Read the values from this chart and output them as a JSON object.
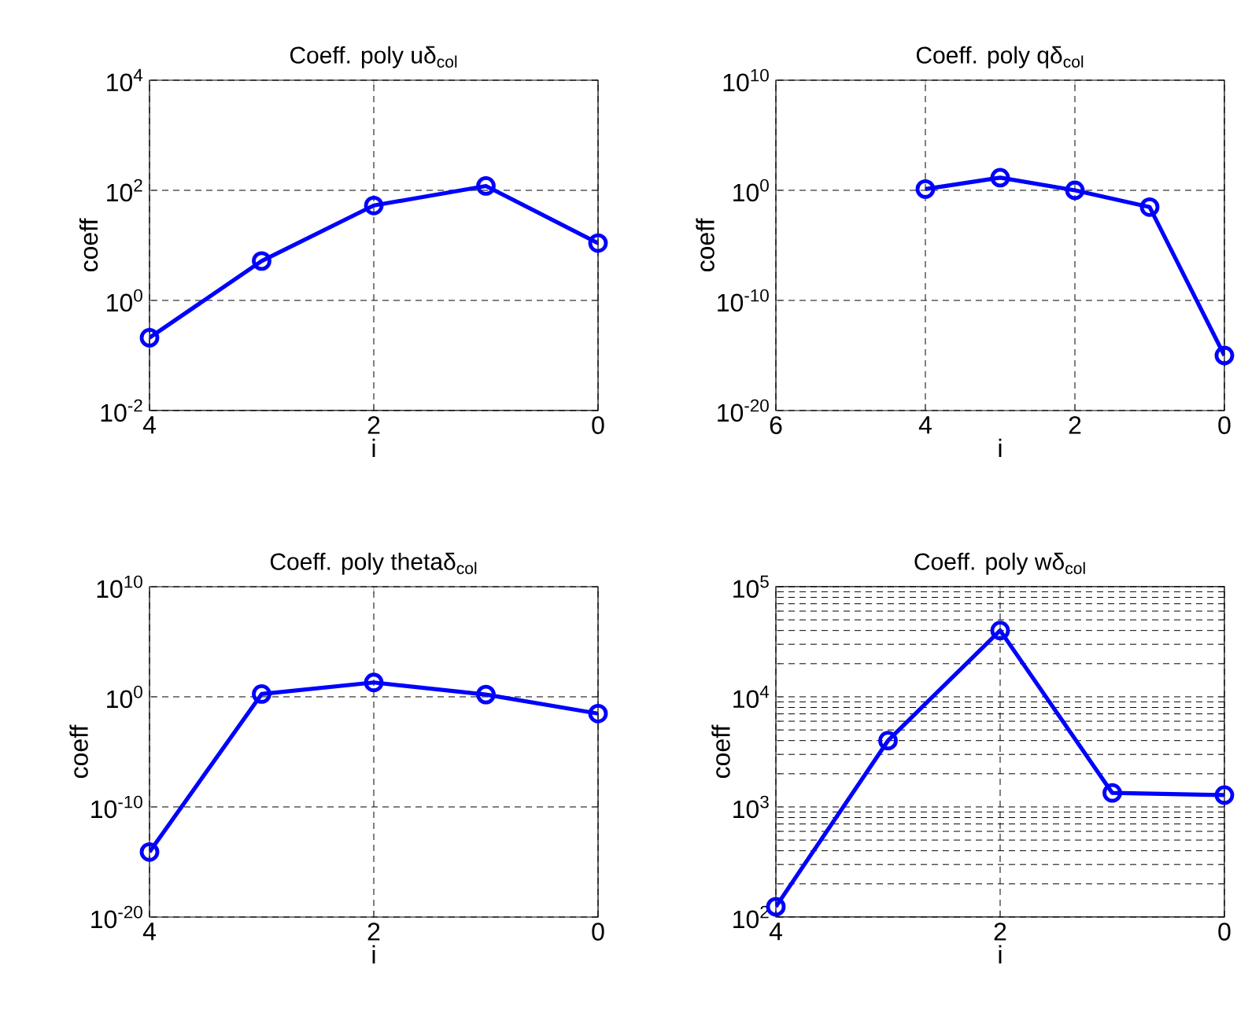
{
  "chart_data": [
    {
      "type": "line",
      "title": "Coeff. poly uδ$_{col}$",
      "xlabel": "i",
      "ylabel": "coeff",
      "x": [
        4,
        3,
        2,
        1,
        0
      ],
      "series": [
        {
          "color": "#0000ff",
          "values": [
            0.21,
            5.2,
            53,
            120,
            11
          ]
        }
      ],
      "xlim": [
        4,
        0
      ],
      "xticks": [
        4,
        2,
        0
      ],
      "ylim": [
        0.01,
        10000
      ],
      "yticks": [
        {
          "value": 0.01,
          "label": "10$^{-2}$"
        },
        {
          "value": 1,
          "label": "10$^{0}$"
        },
        {
          "value": 100,
          "label": "10$^{2}$"
        },
        {
          "value": 10000,
          "label": "10$^{4}$"
        }
      ],
      "log": "y",
      "grid": true,
      "marker": "circle",
      "line_style": "solid"
    },
    {
      "type": "line",
      "title": "Coeff. poly qδ$_{col}$",
      "xlabel": "i",
      "ylabel": "coeff",
      "x": [
        4,
        3,
        2,
        1,
        0
      ],
      "series": [
        {
          "color": "#0000ff",
          "values": [
            1.3,
            14,
            1,
            0.03,
            1e-15
          ]
        }
      ],
      "xlim": [
        6,
        0
      ],
      "xticks": [
        6,
        4,
        2,
        0
      ],
      "ylim": [
        1e-20,
        10000000000.0
      ],
      "yticks": [
        {
          "value": 1e-20,
          "label": "10$^{-20}$"
        },
        {
          "value": 1e-10,
          "label": "10$^{-10}$"
        },
        {
          "value": 1,
          "label": "10$^{0}$"
        },
        {
          "value": 10000000000.0,
          "label": "10$^{10}$"
        }
      ],
      "log": "y",
      "grid": true,
      "marker": "circle",
      "line_style": "solid"
    },
    {
      "type": "line",
      "title": "Coeff. poly thetaδ$_{col}$",
      "xlabel": "i",
      "ylabel": "coeff",
      "x": [
        4,
        3,
        2,
        1,
        0
      ],
      "series": [
        {
          "color": "#0000ff",
          "values": [
            8e-15,
            1.8,
            20,
            1.6,
            0.03
          ]
        }
      ],
      "xlim": [
        4,
        0
      ],
      "xticks": [
        4,
        2,
        0
      ],
      "ylim": [
        1e-20,
        10000000000.0
      ],
      "yticks": [
        {
          "value": 1e-20,
          "label": "10$^{-20}$"
        },
        {
          "value": 1e-10,
          "label": "10$^{-10}$"
        },
        {
          "value": 1,
          "label": "10$^{0}$"
        },
        {
          "value": 10000000000.0,
          "label": "10$^{10}$"
        }
      ],
      "log": "y",
      "grid": true,
      "marker": "circle",
      "line_style": "solid"
    },
    {
      "type": "line",
      "title": "Coeff. poly wδ$_{col}$",
      "xlabel": "i",
      "ylabel": "coeff",
      "x": [
        4,
        3,
        2,
        1,
        0
      ],
      "series": [
        {
          "color": "#0000ff",
          "values": [
            124,
            4000,
            40000,
            1340,
            1280
          ]
        }
      ],
      "xlim": [
        4,
        0
      ],
      "xticks": [
        4,
        2,
        0
      ],
      "ylim": [
        100,
        100000
      ],
      "yticks": [
        {
          "value": 100,
          "label": "10$^{2}$"
        },
        {
          "value": 1000,
          "label": "10$^{3}$"
        },
        {
          "value": 10000,
          "label": "10$^{4}$"
        },
        {
          "value": 100000,
          "label": "10$^{5}$"
        }
      ],
      "log": "y",
      "grid": true,
      "marker": "circle",
      "line_style": "solid"
    }
  ]
}
